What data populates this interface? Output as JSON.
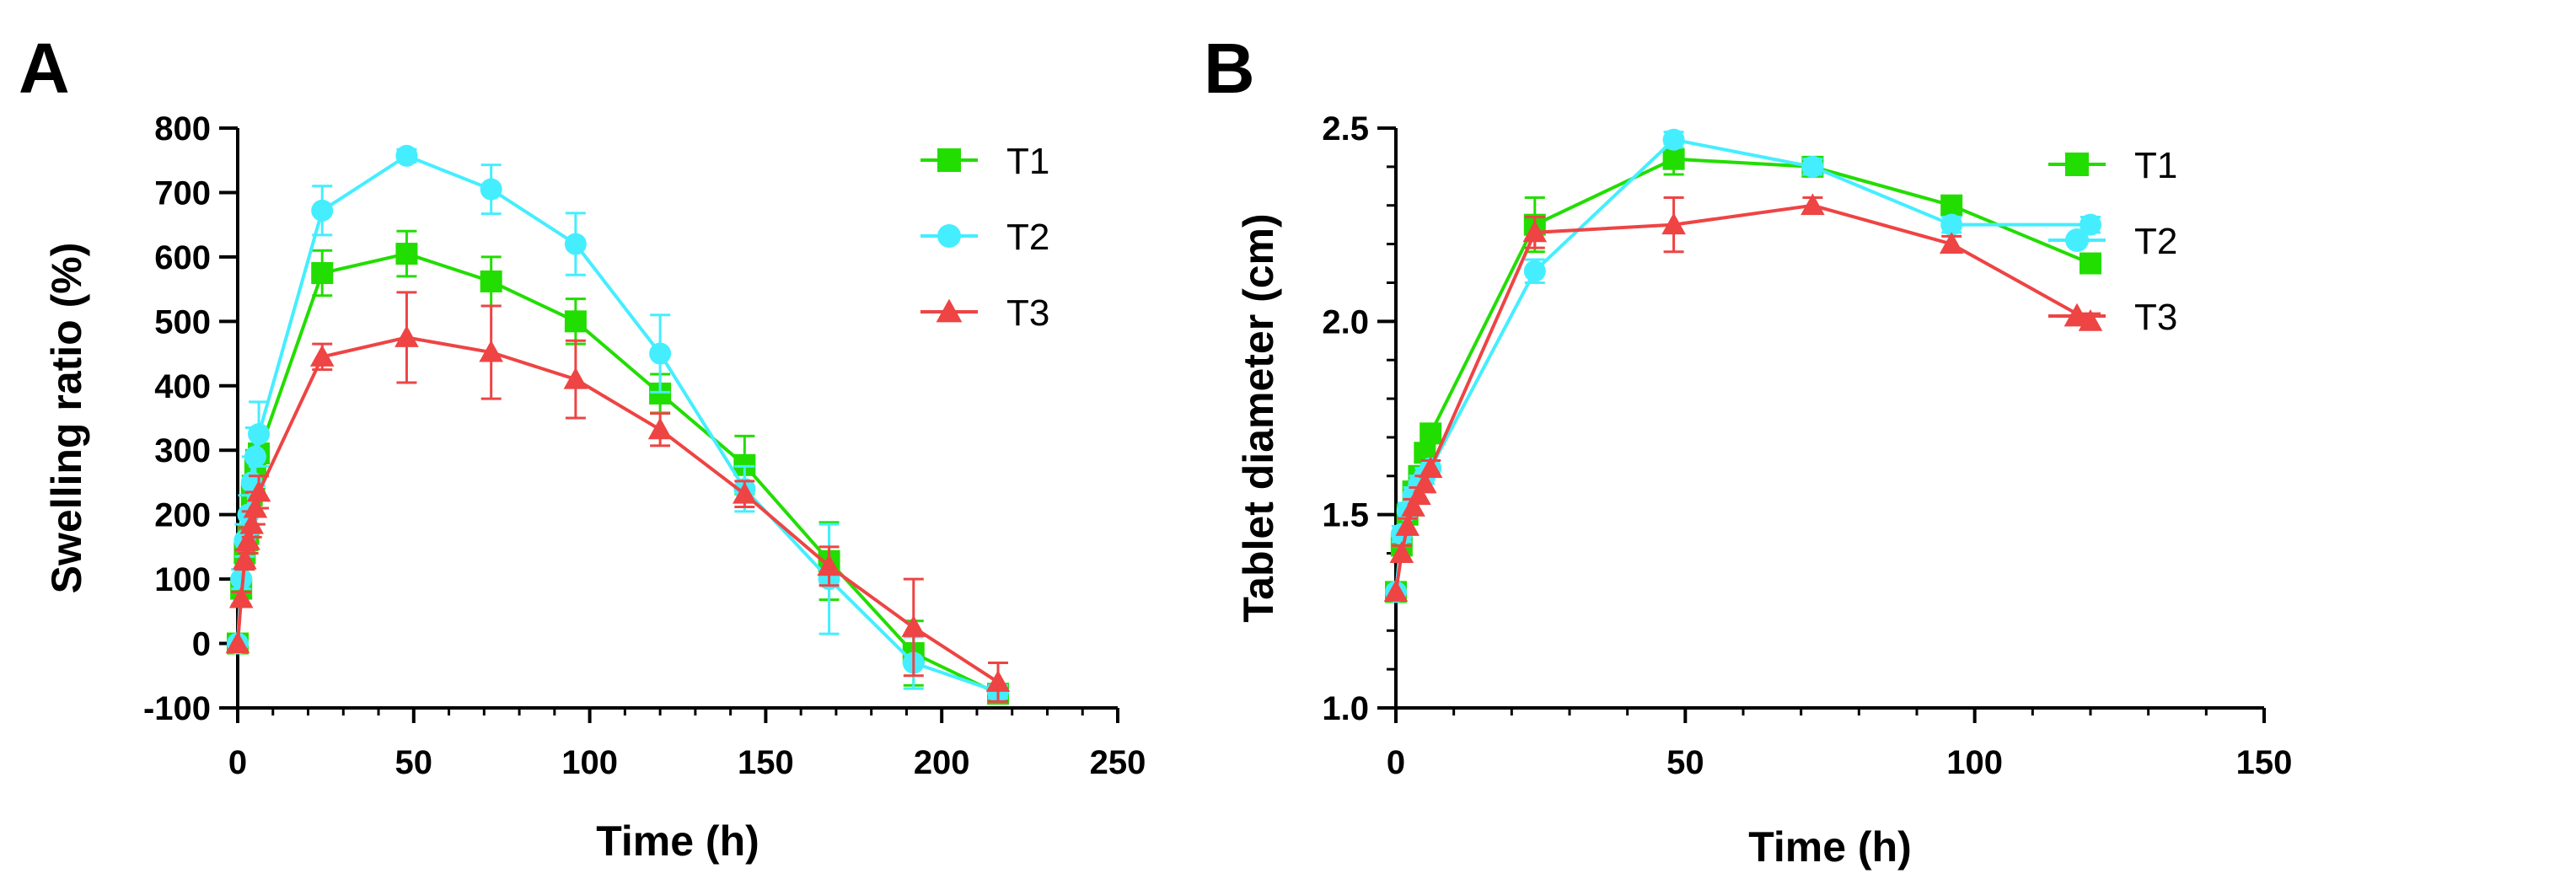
{
  "colors": {
    "T1": "#22dd00",
    "T2": "#44eeff",
    "T3": "#ee4444",
    "axis": "#000000"
  },
  "chart_data": [
    {
      "panel": "A",
      "type": "line",
      "title": "",
      "xlabel": "Time (h)",
      "ylabel": "Swelling ratio (%)",
      "xlim": [
        0,
        250
      ],
      "ylim": [
        -100,
        800
      ],
      "xticks": [
        0,
        50,
        100,
        150,
        200,
        250
      ],
      "yticks": [
        -100,
        0,
        100,
        200,
        300,
        400,
        500,
        600,
        700,
        800
      ],
      "legend_position": "top-right",
      "grid": false,
      "series": [
        {
          "name": "T1",
          "marker": "square",
          "color": "#22dd00",
          "x": [
            0,
            1,
            2,
            3,
            4,
            5,
            6,
            24,
            48,
            72,
            96,
            120,
            144,
            168,
            192,
            216
          ],
          "y": [
            0,
            85,
            140,
            170,
            230,
            270,
            295,
            575,
            605,
            562,
            500,
            388,
            277,
            128,
            -15,
            -78
          ],
          "err": [
            0,
            15,
            20,
            25,
            30,
            30,
            30,
            35,
            35,
            38,
            35,
            30,
            45,
            60,
            50,
            12
          ]
        },
        {
          "name": "T2",
          "marker": "circle",
          "color": "#44eeff",
          "x": [
            0,
            1,
            2,
            3,
            4,
            5,
            6,
            24,
            48,
            72,
            96,
            120,
            144,
            168,
            192,
            216
          ],
          "y": [
            0,
            100,
            160,
            200,
            250,
            290,
            325,
            672,
            757,
            705,
            620,
            450,
            240,
            100,
            -30,
            -75
          ],
          "err": [
            0,
            15,
            25,
            30,
            40,
            45,
            50,
            38,
            10,
            38,
            48,
            60,
            35,
            85,
            40,
            10
          ]
        },
        {
          "name": "T3",
          "marker": "triangle",
          "color": "#ee4444",
          "x": [
            0,
            1,
            2,
            3,
            4,
            5,
            6,
            24,
            48,
            72,
            96,
            120,
            144,
            168,
            192,
            216
          ],
          "y": [
            0,
            70,
            130,
            160,
            185,
            210,
            235,
            445,
            475,
            452,
            410,
            332,
            232,
            120,
            25,
            -60
          ],
          "err": [
            0,
            10,
            15,
            20,
            20,
            25,
            25,
            20,
            70,
            72,
            60,
            25,
            20,
            30,
            75,
            30
          ]
        }
      ]
    },
    {
      "panel": "B",
      "type": "line",
      "title": "",
      "xlabel": "Time (h)",
      "ylabel": "Tablet diameter (cm)",
      "xlim": [
        0,
        150
      ],
      "ylim": [
        1.0,
        2.5
      ],
      "xticks": [
        0,
        50,
        100,
        150
      ],
      "yticks": [
        1.0,
        1.5,
        2.0,
        2.5
      ],
      "y_tick_labels": [
        "1.0",
        "1.5",
        "2.0",
        "2.5"
      ],
      "legend_position": "right",
      "grid": false,
      "series": [
        {
          "name": "T1",
          "marker": "square",
          "color": "#22dd00",
          "x": [
            0,
            1,
            2,
            3,
            4,
            5,
            6,
            24,
            48,
            72,
            96,
            120
          ],
          "y": [
            1.3,
            1.42,
            1.5,
            1.56,
            1.6,
            1.66,
            1.71,
            2.25,
            2.42,
            2.4,
            2.3,
            2.15
          ],
          "err": [
            0,
            0.02,
            0.02,
            0.02,
            0.02,
            0.02,
            0.02,
            0.07,
            0.04,
            0.02,
            0.02,
            0.02
          ]
        },
        {
          "name": "T2",
          "marker": "circle",
          "color": "#44eeff",
          "x": [
            0,
            1,
            2,
            3,
            4,
            5,
            6,
            24,
            48,
            72,
            96,
            120
          ],
          "y": [
            1.3,
            1.45,
            1.51,
            1.55,
            1.58,
            1.6,
            1.62,
            2.13,
            2.47,
            2.4,
            2.25,
            2.25
          ],
          "err": [
            0,
            0.02,
            0.02,
            0.02,
            0.02,
            0.02,
            0.02,
            0.03,
            0.02,
            0.02,
            0.02,
            0.02
          ]
        },
        {
          "name": "T3",
          "marker": "triangle",
          "color": "#ee4444",
          "x": [
            0,
            1,
            2,
            3,
            4,
            5,
            6,
            24,
            48,
            72,
            96,
            120
          ],
          "y": [
            1.3,
            1.4,
            1.47,
            1.52,
            1.55,
            1.58,
            1.62,
            2.23,
            2.25,
            2.3,
            2.2,
            2.0
          ],
          "err": [
            0,
            0.02,
            0.02,
            0.02,
            0.02,
            0.02,
            0.02,
            0.04,
            0.07,
            0.02,
            0.02,
            0.02
          ]
        }
      ]
    }
  ]
}
